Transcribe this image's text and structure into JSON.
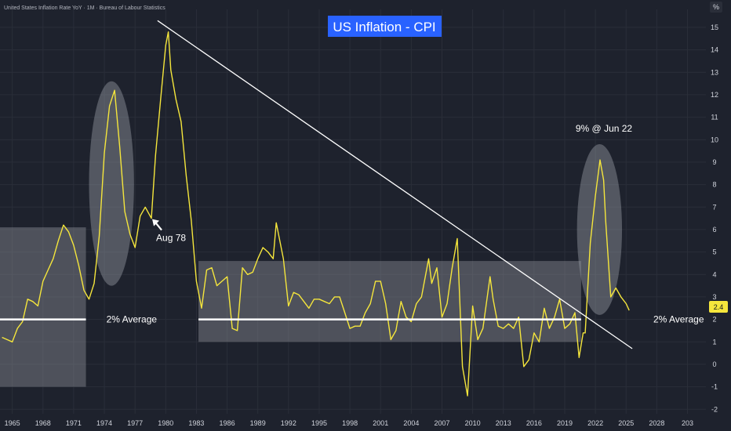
{
  "header": {
    "source": "United States Inflation Rate YoY · 1M · Bureau of Labour Statistics",
    "title": "US Inflation - CPI",
    "unit_label": "%",
    "last_value_badge": "2.4"
  },
  "colors": {
    "background": "#1e222d",
    "grid": "#2a2e39",
    "series": "#f5e63c",
    "title_bg": "#2962ff",
    "zone_fill": "#9598a1",
    "trendline": "#ffffff",
    "average_line": "#ffffff"
  },
  "chart_data": {
    "type": "line",
    "title": "US Inflation - CPI",
    "xlabel": "",
    "ylabel": "%",
    "xlim": [
      1963.8,
      2032.8
    ],
    "ylim": [
      -2.2,
      15.8
    ],
    "x_ticks": [
      "1965",
      "1968",
      "1971",
      "1974",
      "1977",
      "1980",
      "1983",
      "1986",
      "1989",
      "1992",
      "1995",
      "1998",
      "2001",
      "2004",
      "2007",
      "2010",
      "2013",
      "2016",
      "2019",
      "2022",
      "2025",
      "2028",
      "203"
    ],
    "y_ticks": [
      "15",
      "14",
      "13",
      "12",
      "11",
      "10",
      "9",
      "8",
      "7",
      "6",
      "5",
      "4",
      "3",
      "2",
      "1",
      "0",
      "-1",
      "-2"
    ],
    "grid": true,
    "series": [
      {
        "values_x": [
          1964.0,
          1964.5,
          1965.0,
          1965.5,
          1966.0,
          1966.5,
          1967.0,
          1967.5,
          1968.0,
          1968.5,
          1969.0,
          1969.5,
          1970.0,
          1970.5,
          1971.0,
          1971.5,
          1972.0,
          1972.5,
          1973.0,
          1973.5,
          1974.0,
          1974.5,
          1975.0,
          1975.5,
          1976.0,
          1976.5,
          1977.0,
          1977.5,
          1978.0,
          1978.6,
          1979.0,
          1979.5,
          1980.0,
          1980.25,
          1980.5,
          1981.0,
          1981.5,
          1982.0,
          1982.5,
          1983.0,
          1983.5,
          1984.0,
          1984.5,
          1985.0,
          1985.5,
          1986.0,
          1986.5,
          1987.0,
          1987.5,
          1988.0,
          1988.5,
          1989.0,
          1989.5,
          1990.0,
          1990.5,
          1990.8,
          1991.5,
          1992.0,
          1992.5,
          1993.0,
          1993.5,
          1994.0,
          1994.5,
          1995.0,
          1995.5,
          1996.0,
          1996.5,
          1997.0,
          1997.5,
          1998.0,
          1998.5,
          1999.0,
          1999.5,
          2000.0,
          2000.5,
          2001.0,
          2001.5,
          2002.0,
          2002.5,
          2003.0,
          2003.5,
          2004.0,
          2004.5,
          2005.0,
          2005.7,
          2006.0,
          2006.5,
          2007.0,
          2007.5,
          2008.0,
          2008.5,
          2009.0,
          2009.5,
          2010.0,
          2010.5,
          2011.0,
          2011.7,
          2012.0,
          2012.5,
          2013.0,
          2013.5,
          2014.0,
          2014.5,
          2015.0,
          2015.5,
          2016.0,
          2016.5,
          2017.0,
          2017.5,
          2018.0,
          2018.5,
          2019.0,
          2019.5,
          2020.0,
          2020.4,
          2020.8,
          2021.0,
          2021.5,
          2022.0,
          2022.45,
          2022.8,
          2023.0,
          2023.5,
          2024.0,
          2024.5,
          2025.0,
          2025.3
        ],
        "values_y": [
          1.2,
          1.1,
          1.0,
          1.6,
          1.9,
          2.9,
          2.8,
          2.6,
          3.7,
          4.2,
          4.7,
          5.5,
          6.2,
          5.9,
          5.3,
          4.4,
          3.3,
          2.9,
          3.6,
          5.7,
          9.4,
          11.5,
          12.2,
          9.7,
          6.8,
          5.8,
          5.2,
          6.6,
          7.0,
          6.5,
          9.3,
          11.8,
          14.2,
          14.8,
          13.1,
          11.8,
          10.8,
          8.4,
          6.4,
          3.7,
          2.5,
          4.2,
          4.3,
          3.5,
          3.7,
          3.9,
          1.6,
          1.5,
          4.3,
          4.0,
          4.1,
          4.7,
          5.2,
          5.0,
          4.7,
          6.3,
          4.7,
          2.6,
          3.2,
          3.1,
          2.8,
          2.5,
          2.9,
          2.9,
          2.8,
          2.7,
          3.0,
          3.0,
          2.3,
          1.6,
          1.7,
          1.7,
          2.3,
          2.7,
          3.7,
          3.7,
          2.7,
          1.1,
          1.5,
          2.8,
          2.1,
          1.9,
          2.7,
          3.0,
          4.7,
          3.6,
          4.3,
          2.1,
          2.7,
          4.3,
          5.6,
          -0.1,
          -1.4,
          2.6,
          1.1,
          1.6,
          3.9,
          2.9,
          1.7,
          1.6,
          1.8,
          1.6,
          2.1,
          -0.1,
          0.2,
          1.4,
          1.0,
          2.5,
          1.6,
          2.1,
          2.9,
          1.6,
          1.8,
          2.3,
          0.3,
          1.4,
          1.4,
          5.4,
          7.5,
          9.1,
          8.2,
          6.4,
          3.0,
          3.4,
          3.0,
          2.7,
          2.4
        ]
      }
    ],
    "annotations": {
      "aug78": {
        "label": "Aug 78",
        "x": 1978.6,
        "y": 6.5
      },
      "peak_2022": {
        "label": "9% @ Jun 22",
        "x": 2022.45,
        "y": 9.1
      },
      "avg_left": {
        "label": "2% Average",
        "x0": 1963.8,
        "x1": 1972.2,
        "y": 2.0
      },
      "avg_right": {
        "label": "2% Average",
        "x0": 1983.2,
        "x1": 2020.6,
        "y": 2.0
      },
      "trendline": {
        "x0": 1979.2,
        "y0": 15.3,
        "x1": 2025.6,
        "y1": 0.7
      },
      "zone_left": {
        "x0": 1963.8,
        "x1": 1972.2,
        "y0": -1.0,
        "y1": 6.1
      },
      "zone_right": {
        "x0": 1983.2,
        "x1": 2020.6,
        "y0": 1.0,
        "y1": 4.6
      },
      "ellipse_1974": {
        "x0": 1972.5,
        "x1": 1976.9,
        "y0": 3.5,
        "y1": 12.6
      },
      "ellipse_2022": {
        "x0": 2020.2,
        "x1": 2024.6,
        "y0": 2.2,
        "y1": 9.8
      }
    }
  }
}
